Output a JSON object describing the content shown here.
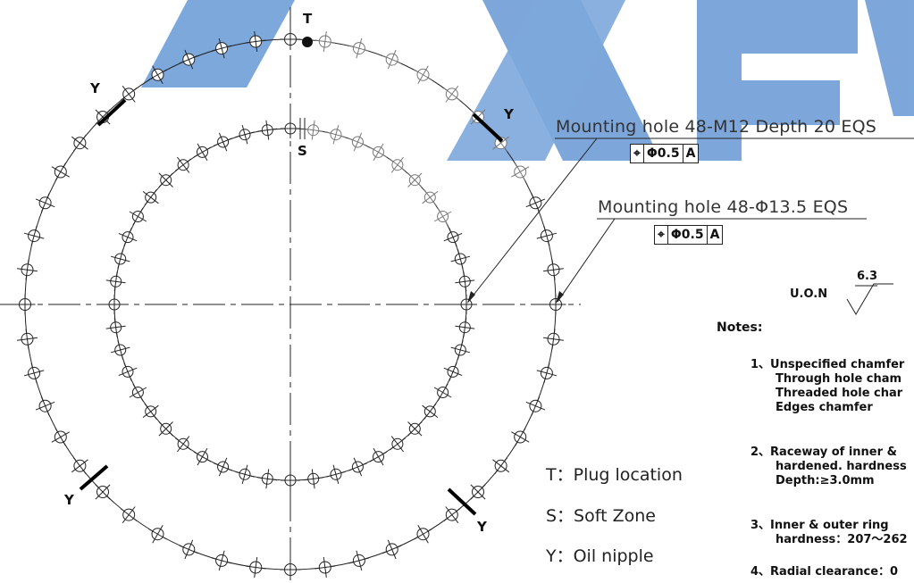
{
  "marks": {
    "t": "T",
    "s": "S",
    "y": "Y"
  },
  "callouts": {
    "outer": {
      "text": "Mounting hole 48-M12 Depth 20 EQS",
      "symbol": "⌖",
      "tolerance": "Φ0.5",
      "datum": "A"
    },
    "inner": {
      "text": "Mounting hole 48-Φ13.5 EQS",
      "symbol": "⌖",
      "tolerance": "Φ0.5",
      "datum": "A"
    }
  },
  "surface": {
    "uon": "U.O.N",
    "roughness": "6.3"
  },
  "legend": {
    "t": "T：Plug location",
    "s": "S：Soft Zone",
    "y": "Y：Oil nipple"
  },
  "notes": {
    "heading": "Notes:",
    "items": [
      "1、Unspecified chamfer",
      "Through hole cham",
      "Threaded hole char",
      "Edges chamfer",
      "2、Raceway of inner &",
      "hardened. hardness",
      "Depth:≥3.0mm",
      "3、Inner & outer ring",
      "hardness：207～262",
      "4、Radial clearance：0"
    ]
  },
  "colors": {
    "watermark": "#5a8fd0",
    "line": "#222222",
    "faint": "#666666"
  }
}
